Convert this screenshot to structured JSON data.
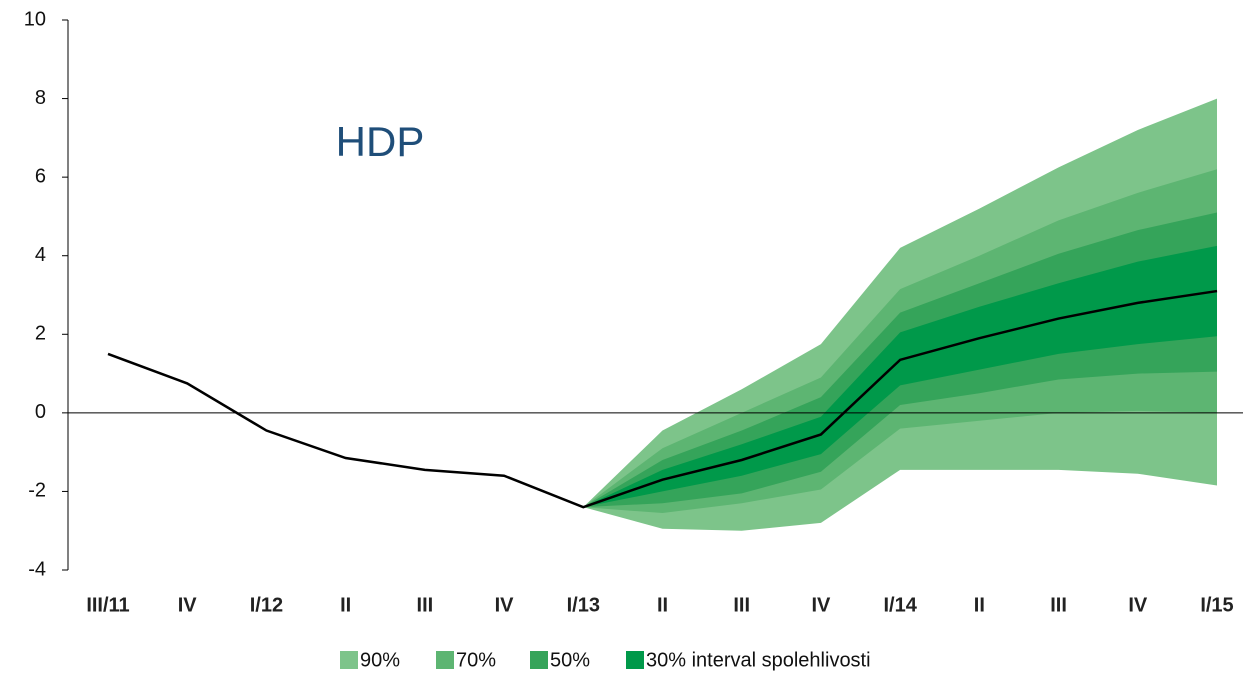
{
  "chart_data": {
    "type": "fan",
    "annotation": "HDP",
    "categories": [
      "III/11",
      "IV",
      "I/12",
      "II",
      "III",
      "IV",
      "I/13",
      "II",
      "III",
      "IV",
      "I/14",
      "II",
      "III",
      "IV",
      "I/15"
    ],
    "values": [
      1.5,
      0.75,
      -0.45,
      -1.15,
      -1.45,
      -1.6,
      -2.4,
      -1.7,
      -1.2,
      -0.55,
      1.35,
      1.9,
      2.4,
      2.8,
      3.1
    ],
    "color": "#000000",
    "bands": [
      {
        "name": "90%",
        "color": "#7dc48a",
        "upper": [
          null,
          null,
          null,
          null,
          null,
          null,
          -2.4,
          -0.45,
          0.6,
          1.75,
          4.2,
          5.2,
          6.25,
          7.2,
          8.0
        ],
        "lower": [
          null,
          null,
          null,
          null,
          null,
          null,
          -2.4,
          -2.95,
          -3.0,
          -2.8,
          -1.45,
          -1.45,
          -1.45,
          -1.55,
          -1.85
        ]
      },
      {
        "name": "70%",
        "color": "#5db572",
        "upper": [
          null,
          null,
          null,
          null,
          null,
          null,
          -2.4,
          -0.9,
          0.0,
          0.9,
          3.15,
          4.0,
          4.9,
          5.6,
          6.2
        ],
        "lower": [
          null,
          null,
          null,
          null,
          null,
          null,
          -2.4,
          -2.55,
          -2.3,
          -1.95,
          -0.4,
          -0.2,
          0.0,
          0.05,
          0.0
        ]
      },
      {
        "name": "50%",
        "color": "#35a45a",
        "upper": [
          null,
          null,
          null,
          null,
          null,
          null,
          -2.4,
          -1.2,
          -0.45,
          0.4,
          2.55,
          3.3,
          4.05,
          4.65,
          5.1
        ],
        "lower": [
          null,
          null,
          null,
          null,
          null,
          null,
          -2.4,
          -2.3,
          -2.05,
          -1.5,
          0.2,
          0.5,
          0.85,
          1.0,
          1.05
        ]
      },
      {
        "name": "30% interval spolehlivosti",
        "color": "#00994a",
        "upper": [
          null,
          null,
          null,
          null,
          null,
          null,
          -2.4,
          -1.45,
          -0.8,
          -0.1,
          2.05,
          2.7,
          3.3,
          3.85,
          4.25
        ],
        "lower": [
          null,
          null,
          null,
          null,
          null,
          null,
          -2.4,
          -2.0,
          -1.6,
          -1.05,
          0.7,
          1.1,
          1.5,
          1.75,
          1.95
        ]
      }
    ],
    "ylim": [
      -4,
      10
    ],
    "yticks": [
      -4,
      -2,
      0,
      2,
      4,
      6,
      8,
      10
    ],
    "grid": false
  }
}
